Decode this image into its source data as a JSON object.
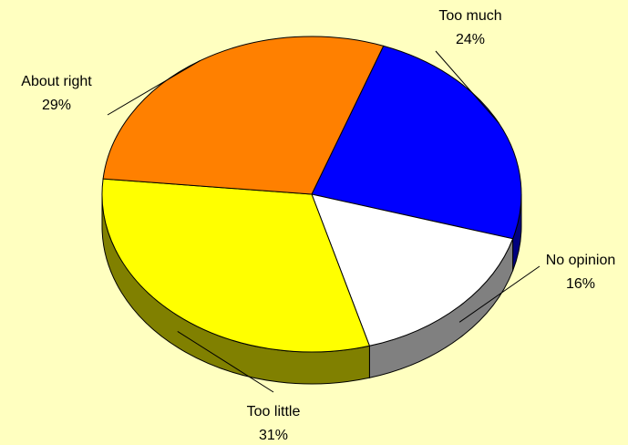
{
  "chart_data": {
    "type": "pie",
    "style": "3d",
    "background": "#FFFFC0",
    "slices": [
      {
        "label": "Too much",
        "value": 24,
        "value_label": "24%",
        "color": "#0000FF"
      },
      {
        "label": "No opinion",
        "value": 16,
        "value_label": "16%",
        "color": "#FFFFFF"
      },
      {
        "label": "Too little",
        "value": 31,
        "value_label": "31%",
        "color": "#FFFF00"
      },
      {
        "label": "About right",
        "value": 29,
        "value_label": "29%",
        "color": "#FF8000"
      }
    ]
  }
}
